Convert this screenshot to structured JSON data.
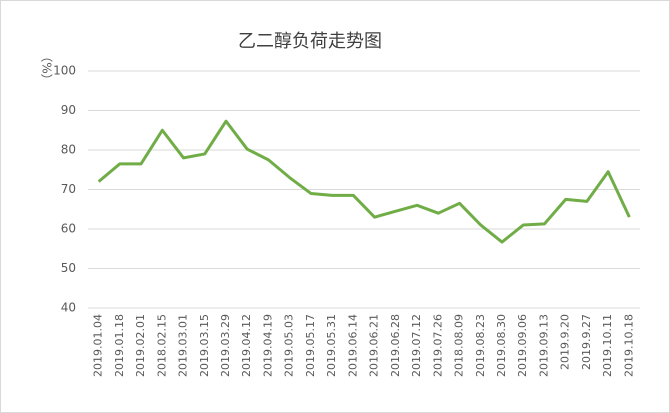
{
  "chart_data": {
    "type": "line",
    "title": "乙二醇负荷走势图",
    "y_label": "（%）",
    "categories": [
      "2019.01.04",
      "2019.01.18",
      "2019.02.01",
      "2018.02.15",
      "2019.03.01",
      "2019.03.15",
      "2019.03.29",
      "2019.04.12",
      "2019.04.19",
      "2019.05.03",
      "2019.05.17",
      "2019.05.31",
      "2019.06.14",
      "2019.06.21",
      "2019.06.28",
      "2019.07.12",
      "2019.07.26",
      "2018.08.09",
      "2019.08.23",
      "2019.08.30",
      "2019.09.06",
      "2019.09.13",
      "2019.9.20",
      "2019.9.27",
      "2019.10.11",
      "2019.10.18"
    ],
    "values": [
      72,
      76.5,
      76.5,
      85,
      78,
      79,
      87.3,
      80.2,
      77.5,
      73,
      69,
      68.5,
      68.5,
      63,
      64.5,
      66,
      64,
      66.5,
      61,
      56.7,
      61,
      61.3,
      67.5,
      67,
      74.5,
      63
    ],
    "color": "#70ad47",
    "ylim": [
      40,
      100
    ],
    "yticks": [
      40,
      50,
      60,
      70,
      80,
      90,
      100
    ],
    "grid": true
  }
}
